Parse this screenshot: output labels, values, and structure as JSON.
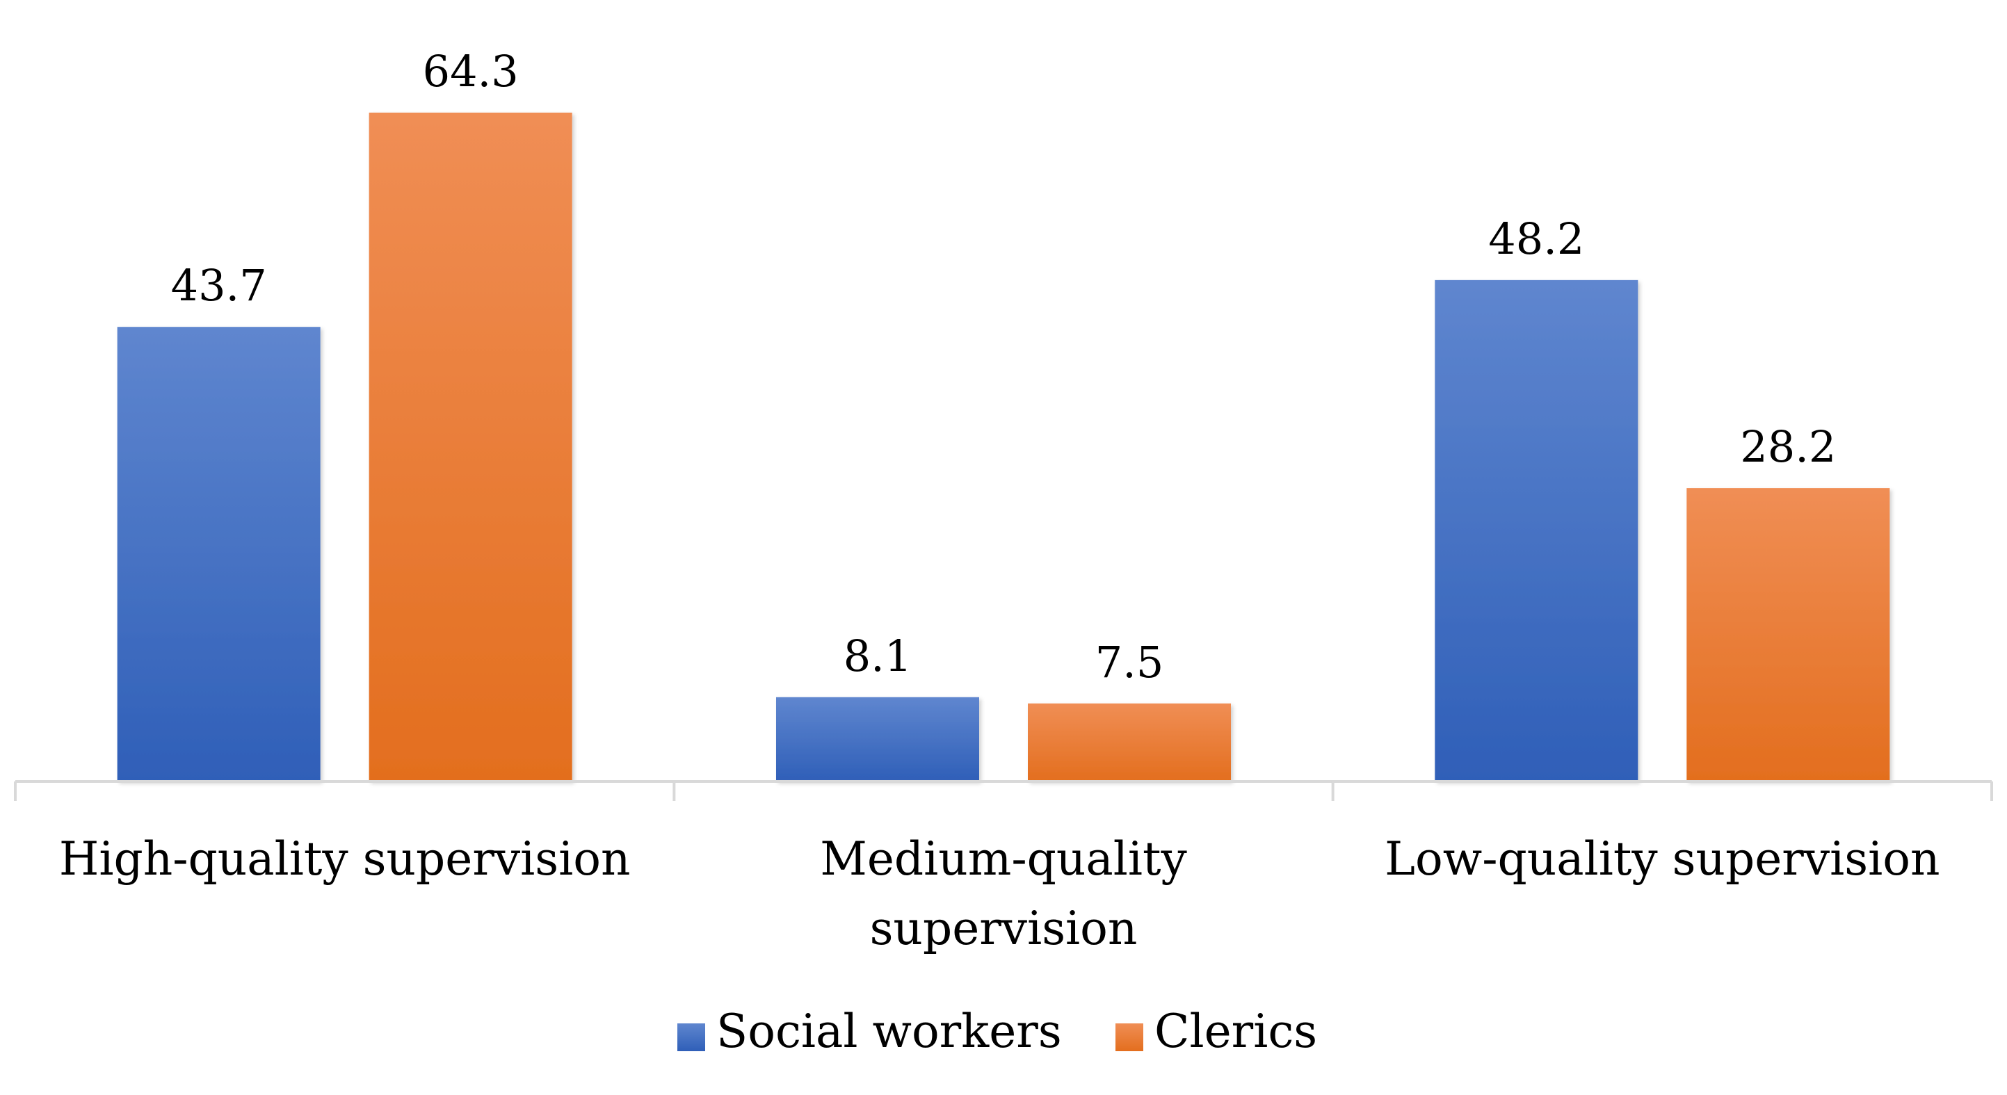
{
  "chart_data": {
    "type": "bar",
    "categories": [
      [
        "High-quality supervision"
      ],
      [
        "Medium-quality",
        "supervision"
      ],
      [
        "Low-quality supervision"
      ]
    ],
    "series": [
      {
        "name": "Social workers",
        "values": [
          43.7,
          8.1,
          48.2
        ],
        "color": "#4472C4"
      },
      {
        "name": "Clerics",
        "values": [
          64.3,
          7.5,
          28.2
        ],
        "color": "#ED7D31"
      }
    ],
    "ylim": [
      0,
      64.3
    ],
    "grid": false,
    "legend": "bottom-center",
    "data_labels": true
  }
}
